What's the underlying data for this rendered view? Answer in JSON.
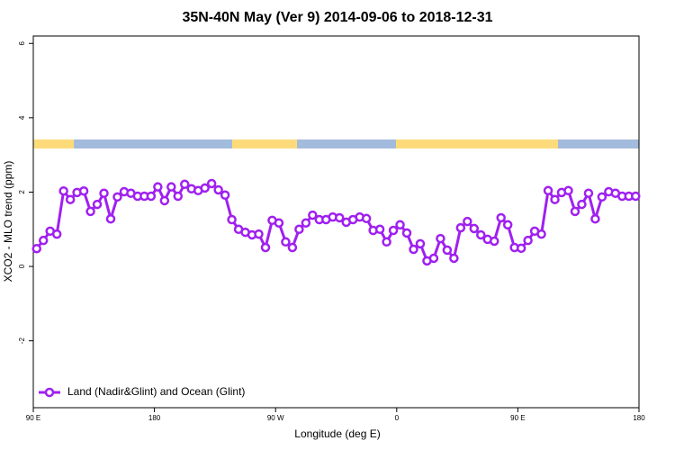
{
  "chart_data": {
    "type": "line",
    "title": "35N-40N May (Ver 9)   2014-09-06 to 2018-12-31",
    "x_label": "Longitude (deg E)",
    "y_label": "XCO2 - MLO trend (ppm)",
    "x": [
      92.5,
      97.5,
      102.5,
      107.5,
      112.5,
      117.5,
      122.5,
      127.5,
      132.5,
      137.5,
      142.5,
      147.5,
      152.5,
      157.5,
      162.5,
      167.5,
      172.5,
      177.5,
      182.5,
      187.5,
      192.5,
      197.5,
      202.5,
      207.5,
      212.5,
      217.5,
      222.5,
      227.5,
      232.5,
      237.5,
      242.5,
      247.5,
      252.5,
      257.5,
      262.5,
      267.5,
      272.5,
      277.5,
      282.5,
      287.5,
      292.5,
      297.5,
      302.5,
      307.5,
      312.5,
      317.5,
      322.5,
      327.5,
      332.5,
      337.5,
      342.5,
      347.5,
      352.5,
      357.5,
      362.5,
      367.5,
      372.5,
      377.5,
      382.5,
      387.5,
      392.5,
      397.5,
      402.5,
      407.5,
      412.5,
      417.5,
      422.5,
      427.5,
      432.5,
      437.5,
      442.5,
      447.5,
      452.5,
      457.5,
      462.5,
      467.5,
      472.5,
      477.5,
      482.5,
      487.5,
      492.5,
      497.5,
      502.5,
      507.5,
      512.5,
      517.5,
      522.5,
      527.5,
      532.5,
      537.5
    ],
    "series": [
      {
        "name": "Land (Nadir&Glint) and Ocean (Glint)",
        "color": "#a020f0",
        "values": [
          0.48,
          0.7,
          0.95,
          0.87,
          2.03,
          1.8,
          1.99,
          2.03,
          1.48,
          1.67,
          1.97,
          1.28,
          1.87,
          2.01,
          1.97,
          1.89,
          1.89,
          1.89,
          2.14,
          1.77,
          2.14,
          1.89,
          2.21,
          2.09,
          2.04,
          2.11,
          2.23,
          2.06,
          1.92,
          1.26,
          1.0,
          0.92,
          0.85,
          0.87,
          0.51,
          1.24,
          1.17,
          0.66,
          0.51,
          1.0,
          1.17,
          1.38,
          1.26,
          1.26,
          1.33,
          1.31,
          1.19,
          1.26,
          1.33,
          1.29,
          0.97,
          1.0,
          0.66,
          0.97,
          1.12,
          0.9,
          0.46,
          0.61,
          0.15,
          0.22,
          0.75,
          0.44,
          0.22,
          1.04,
          1.21,
          1.02,
          0.85,
          0.73,
          0.68,
          1.31,
          1.12,
          0.51,
          0.49,
          0.7,
          0.95,
          0.87,
          2.04,
          1.8,
          1.99,
          2.04,
          1.48,
          1.67,
          1.97,
          1.28,
          1.87,
          2.01,
          1.97,
          1.89,
          1.89,
          1.89
        ]
      }
    ],
    "xlim": [
      90,
      540
    ],
    "xticks": [
      {
        "value": 90,
        "label": "90 E"
      },
      180,
      {
        "value": 270,
        "label": "90 W"
      },
      {
        "value": 360,
        "label": "0"
      },
      {
        "value": 450,
        "label": "90 E"
      },
      {
        "value": 540,
        "label": "180"
      }
    ],
    "ylim": [
      -3.8,
      6.2
    ],
    "yticks": [
      -2,
      0,
      2,
      4,
      6
    ],
    "legend": "bottom-left"
  }
}
